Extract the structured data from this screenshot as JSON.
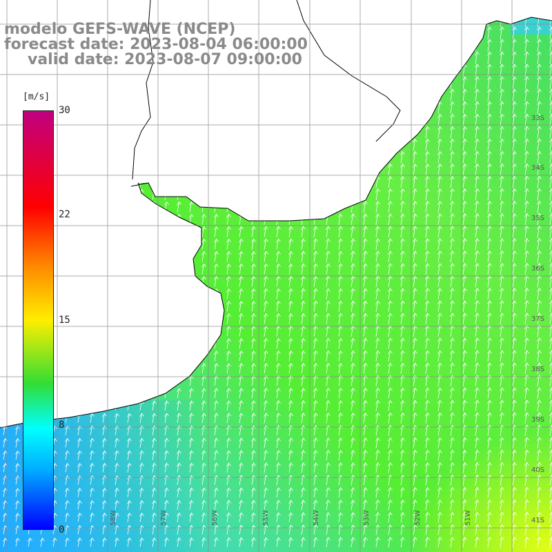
{
  "title": {
    "line1": "modelo GEFS-WAVE (NCEP)",
    "line2": "forecast date: 2023-08-04 06:00:00",
    "line3": "valid date: 2023-08-07 09:00:00"
  },
  "colorbar": {
    "unit": "[m/s]",
    "ticks": [
      "30",
      "22",
      "15",
      "8",
      "0"
    ]
  },
  "lat_labels": [
    "33S",
    "34S",
    "35S",
    "36S",
    "37S",
    "38S",
    "39S",
    "40S",
    "41S"
  ],
  "lon_labels": [
    "58W",
    "57W",
    "56W",
    "55W",
    "54W",
    "53W",
    "52W",
    "51W"
  ],
  "colors": {
    "land": "#ffffff",
    "coast": "#000000",
    "grid": "#888888",
    "sea_low": "#33ccff",
    "sea_mid": "#33ee33",
    "sea_high": "#ccff00",
    "arrow": "#ffffff"
  },
  "wind_direction_to": "NNE"
}
